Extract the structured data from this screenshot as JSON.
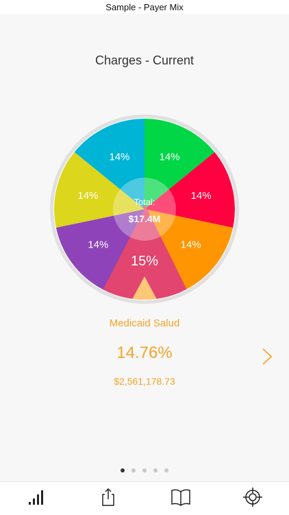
{
  "status_bar": {
    "title": "Sample - Payer Mix"
  },
  "header": {
    "title": "Charges - Current"
  },
  "chart_data": {
    "type": "pie",
    "categories": [
      "",
      "",
      "",
      "",
      "",
      "",
      ""
    ],
    "values": [
      14,
      14,
      14,
      14,
      15,
      14,
      14
    ],
    "labels": [
      "14%",
      "14%",
      "14%",
      "14%",
      "15%",
      "14%",
      "14%"
    ],
    "colors": [
      "#00b4d6",
      "#00d646",
      "#ff0040",
      "#ff9500",
      "#e2456f",
      "#8e44b8",
      "#dcd61c"
    ],
    "selected_index": 4,
    "center_label": "Total:",
    "center_value": "$17.4M"
  },
  "selection": {
    "name": "Medicaid Salud",
    "percent": "14.76%",
    "amount": "$2,561,178.73",
    "color": "#f5a326"
  },
  "pager": {
    "count": 5,
    "active": 0
  },
  "tabbar": {
    "items": [
      {
        "name": "stats",
        "icon": "bar-signal-icon"
      },
      {
        "name": "share",
        "icon": "share-icon"
      },
      {
        "name": "book",
        "icon": "book-icon"
      },
      {
        "name": "target",
        "icon": "crosshair-icon"
      }
    ]
  },
  "accent": "#f5a326"
}
